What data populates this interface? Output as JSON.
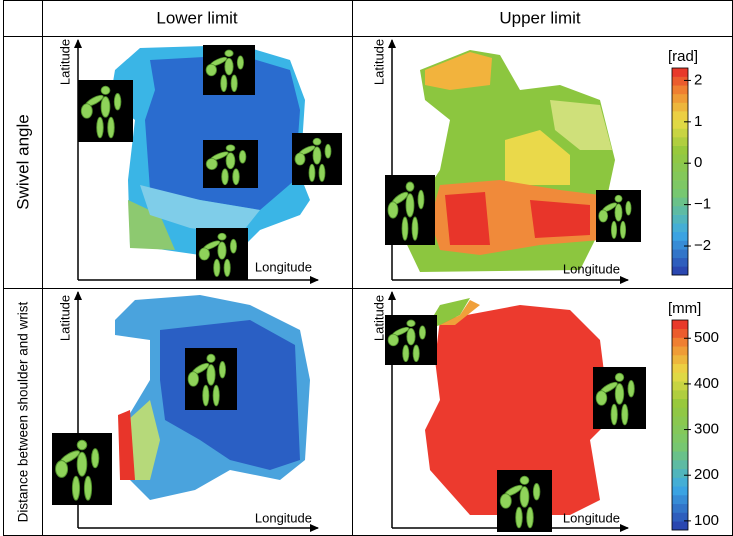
{
  "header": {
    "columns": [
      "Lower limit",
      "Upper limit"
    ]
  },
  "rows": [
    {
      "label": "Swivel angle",
      "panels": [
        {
          "y_label": "Latitude",
          "x_label": "Longitude"
        },
        {
          "y_label": "Latitude",
          "x_label": "Longitude"
        }
      ],
      "colorbar": {
        "unit": "[rad]",
        "lim": [
          -2.7,
          2.3
        ],
        "ticks": [
          2,
          1,
          0,
          {
            "value": -1,
            "label": "−1"
          },
          {
            "value": -2,
            "label": "−2"
          }
        ]
      }
    },
    {
      "label": "Distance between shoulder and wrist",
      "panels": [
        {
          "y_label": "Latitude",
          "x_label": "Longitude"
        },
        {
          "y_label": "Latitude",
          "x_label": "Longitude"
        }
      ],
      "colorbar": {
        "unit": "[mm]",
        "lim": [
          80,
          540
        ],
        "ticks": [
          500,
          400,
          300,
          200,
          100
        ]
      }
    }
  ]
}
